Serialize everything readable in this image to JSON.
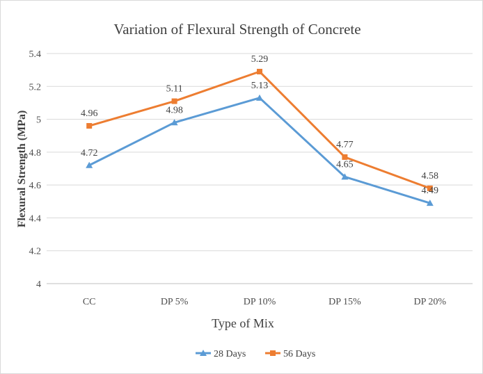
{
  "chart_data": {
    "type": "line",
    "title": "Variation  of Flexural Strength of Concrete",
    "xlabel": "Type of Mix",
    "ylabel": "Flexural Strength (MPa)",
    "ylim": [
      4,
      5.4
    ],
    "yticks": [
      4,
      4.2,
      4.4,
      4.6,
      4.8,
      5,
      5.2,
      5.4
    ],
    "ytick_labels": [
      "4",
      "4.2",
      "4.4",
      "4.6",
      "4.8",
      "5",
      "5.2",
      "5.4"
    ],
    "categories": [
      "CC",
      "DP 5%",
      "DP 10%",
      "DP 15%",
      "DP 20%"
    ],
    "grid": true,
    "legend_position": "bottom",
    "series": [
      {
        "name": "28 Days",
        "values": [
          4.72,
          4.98,
          5.13,
          4.65,
          4.49
        ],
        "labels": [
          "4.72",
          "4.98",
          "5.13",
          "4.65",
          "4.49"
        ],
        "color": "#5b9bd5",
        "marker": "triangle"
      },
      {
        "name": "56 Days",
        "values": [
          4.96,
          5.11,
          5.29,
          4.77,
          4.58
        ],
        "labels": [
          "4.96",
          "5.11",
          "5.29",
          "4.77",
          "4.58"
        ],
        "color": "#ed7d31",
        "marker": "square"
      }
    ]
  }
}
